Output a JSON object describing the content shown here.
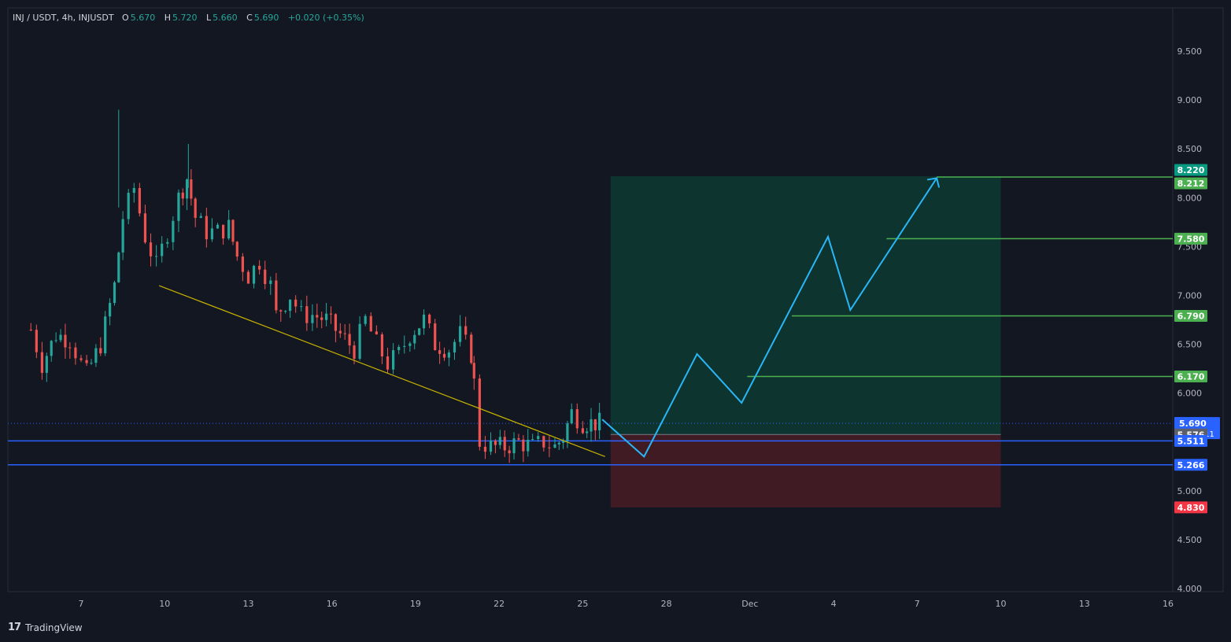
{
  "header": {
    "symbol": "INJ / USDT, 4h, INJUSDT",
    "open_label": "O",
    "open": "5.670",
    "high_label": "H",
    "high": "5.720",
    "low_label": "L",
    "low": "5.660",
    "close_label": "C",
    "close": "5.690",
    "change": "+0.020 (+0.35%)"
  },
  "footer": {
    "brand": "TradingView"
  },
  "colors": {
    "bull": "#26a69a",
    "bear": "#ef5350",
    "trendline": "#c8b400",
    "support": "#2962ff",
    "projection": "#29b6f6",
    "target_line": "#4caf50",
    "profit_zone": "#0e3a33",
    "loss_zone": "#4a1c24",
    "price_tag": "#2962ff",
    "stop_tag": "#f23645",
    "target_tag": "#4caf50",
    "target_tag_dark": "#089981"
  },
  "chart_data": {
    "type": "candlestick",
    "symbol": "INJUSDT",
    "interval": "4h",
    "ylim": [
      3.9,
      9.95
    ],
    "y_ticks": [
      "4.000",
      "4.500",
      "5.000",
      "5.500",
      "6.000",
      "6.500",
      "7.000",
      "7.500",
      "8.000",
      "8.500",
      "9.000",
      "9.500"
    ],
    "x_ticks": [
      {
        "label": "7",
        "day": 7
      },
      {
        "label": "10",
        "day": 10
      },
      {
        "label": "13",
        "day": 13
      },
      {
        "label": "16",
        "day": 16
      },
      {
        "label": "19",
        "day": 19
      },
      {
        "label": "22",
        "day": 22
      },
      {
        "label": "25",
        "day": 25
      },
      {
        "label": "28",
        "day": 28
      },
      {
        "label": "Dec",
        "day": 31
      },
      {
        "label": "4",
        "day": 34
      },
      {
        "label": "7",
        "day": 37
      },
      {
        "label": "10",
        "day": 40
      },
      {
        "label": "13",
        "day": 43
      },
      {
        "label": "16",
        "day": 46
      }
    ],
    "candle_anchor_start": {
      "day": 5.0,
      "price": 6.65
    },
    "candle_anchors": [
      {
        "day": 5.2,
        "price": 6.65
      },
      {
        "day": 5.6,
        "price": 6.3
      },
      {
        "day": 6.1,
        "price": 6.6
      },
      {
        "day": 6.6,
        "price": 6.55
      },
      {
        "day": 7.0,
        "price": 6.3
      },
      {
        "day": 7.2,
        "price": 6.2
      },
      {
        "day": 7.7,
        "price": 6.5
      },
      {
        "day": 8.2,
        "price": 7.1
      },
      {
        "day": 8.5,
        "price": 7.8
      },
      {
        "day": 8.9,
        "price": 8.1
      },
      {
        "day": 9.3,
        "price": 7.6
      },
      {
        "day": 9.7,
        "price": 7.3
      },
      {
        "day": 10.1,
        "price": 7.65
      },
      {
        "day": 10.5,
        "price": 8.0
      },
      {
        "day": 10.8,
        "price": 8.2
      },
      {
        "day": 11.1,
        "price": 7.8
      },
      {
        "day": 11.5,
        "price": 7.65
      },
      {
        "day": 11.9,
        "price": 7.65
      },
      {
        "day": 12.3,
        "price": 7.7
      },
      {
        "day": 12.6,
        "price": 7.4
      },
      {
        "day": 13.0,
        "price": 7.2
      },
      {
        "day": 13.4,
        "price": 7.35
      },
      {
        "day": 13.8,
        "price": 7.1
      },
      {
        "day": 14.0,
        "price": 6.8
      },
      {
        "day": 14.5,
        "price": 7.0
      },
      {
        "day": 14.9,
        "price": 6.8
      },
      {
        "day": 15.3,
        "price": 6.8
      },
      {
        "day": 15.8,
        "price": 6.75
      },
      {
        "day": 16.3,
        "price": 6.6
      },
      {
        "day": 16.8,
        "price": 6.45
      },
      {
        "day": 17.2,
        "price": 6.75
      },
      {
        "day": 17.6,
        "price": 6.5
      },
      {
        "day": 18.0,
        "price": 6.3
      },
      {
        "day": 18.4,
        "price": 6.4
      },
      {
        "day": 18.8,
        "price": 6.6
      },
      {
        "day": 19.3,
        "price": 6.75
      },
      {
        "day": 19.7,
        "price": 6.5
      },
      {
        "day": 20.2,
        "price": 6.45
      },
      {
        "day": 20.6,
        "price": 6.6
      },
      {
        "day": 21.0,
        "price": 6.4
      },
      {
        "day": 21.1,
        "price": 6.1
      },
      {
        "day": 21.3,
        "price": 5.5
      },
      {
        "day": 21.7,
        "price": 5.45
      },
      {
        "day": 22.2,
        "price": 5.45
      },
      {
        "day": 22.7,
        "price": 5.5
      },
      {
        "day": 23.2,
        "price": 5.45
      },
      {
        "day": 23.6,
        "price": 5.5
      },
      {
        "day": 24.0,
        "price": 5.45
      },
      {
        "day": 24.3,
        "price": 5.55
      },
      {
        "day": 24.6,
        "price": 5.8
      },
      {
        "day": 25.0,
        "price": 5.7
      },
      {
        "day": 25.6,
        "price": 5.69
      }
    ],
    "trendline": {
      "from": {
        "day": 9.8,
        "price": 7.1
      },
      "to": {
        "day": 25.8,
        "price": 5.35
      }
    },
    "support_levels": [
      5.511,
      5.266
    ],
    "current_price": 5.69,
    "countdown": "03:17:11",
    "position": {
      "type": "long",
      "entry": 5.576,
      "target": 8.22,
      "stop": 4.83,
      "from_day": 26.0,
      "to_day": 40.0
    },
    "projection_path": [
      {
        "day": 25.7,
        "price": 5.73
      },
      {
        "day": 27.2,
        "price": 5.35
      },
      {
        "day": 29.1,
        "price": 6.4
      },
      {
        "day": 30.7,
        "price": 5.9
      },
      {
        "day": 33.8,
        "price": 7.6
      },
      {
        "day": 34.6,
        "price": 6.85
      },
      {
        "day": 37.7,
        "price": 8.2
      }
    ],
    "target_levels": [
      {
        "price": 8.212,
        "label": "8.212",
        "from_day": 37.7
      },
      {
        "price": 7.58,
        "label": "7.580",
        "from_day": 35.9
      },
      {
        "price": 6.79,
        "label": "6.790",
        "from_day": 32.5
      },
      {
        "price": 6.17,
        "label": "6.170",
        "from_day": 30.9
      }
    ],
    "price_tags": [
      {
        "label": "8.220",
        "price": 8.22,
        "kind": "target_dark"
      },
      {
        "label": "8.212",
        "price": 8.212,
        "kind": "target"
      },
      {
        "label": "7.580",
        "price": 7.58,
        "kind": "target"
      },
      {
        "label": "6.790",
        "price": 6.79,
        "kind": "target"
      },
      {
        "label": "6.170",
        "price": 6.17,
        "kind": "target"
      },
      {
        "label": "5.690",
        "price": 5.69,
        "kind": "current"
      },
      {
        "label": "5.576",
        "price": 5.576,
        "kind": "entry"
      },
      {
        "label": "5.511",
        "price": 5.511,
        "kind": "support"
      },
      {
        "label": "5.266",
        "price": 5.266,
        "kind": "support"
      },
      {
        "label": "4.830",
        "price": 4.83,
        "kind": "stop"
      }
    ]
  }
}
